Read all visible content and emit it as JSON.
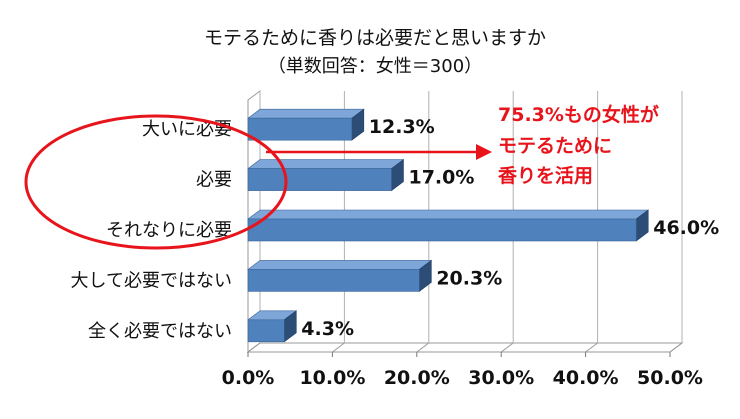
{
  "title": "モテるために香りは必要だと思いますか",
  "subtitle": "（単数回答：女性＝300）",
  "annotation": {
    "lines": [
      "75.3%もの女性が",
      "モテるために",
      "香りを活用"
    ],
    "color": "#e8141c"
  },
  "colors": {
    "bar_front": "#4f81bd",
    "bar_top": "#7ea6d8",
    "bar_side": "#2c4d75",
    "ellipse": "#e8141c",
    "arrow": "#e8141c"
  },
  "chart_data": {
    "type": "bar",
    "orientation": "horizontal",
    "style": "3d",
    "categories": [
      "大いに必要",
      "必要",
      "それなりに必要",
      "大して必要ではない",
      "全く必要ではない"
    ],
    "values": [
      12.3,
      17.0,
      46.0,
      20.3,
      4.3
    ],
    "value_labels": [
      "12.3%",
      "17.0%",
      "46.0%",
      "20.3%",
      "4.3%"
    ],
    "xlim": [
      0,
      50
    ],
    "x_ticks": [
      "0.0%",
      "10.0%",
      "20.0%",
      "30.0%",
      "40.0%",
      "50.0%"
    ],
    "grid": true,
    "title": "モテるために香りは必要だと思いますか",
    "subtitle": "（単数回答：女性＝300）",
    "xlabel": "",
    "ylabel": ""
  }
}
